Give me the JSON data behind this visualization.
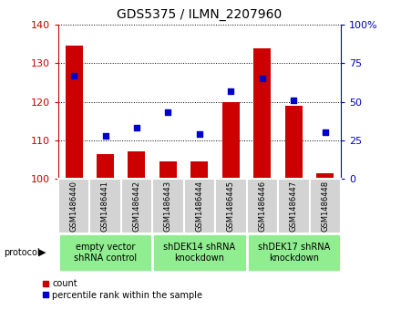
{
  "title": "GDS5375 / ILMN_2207960",
  "samples": [
    "GSM1486440",
    "GSM1486441",
    "GSM1486442",
    "GSM1486443",
    "GSM1486444",
    "GSM1486445",
    "GSM1486446",
    "GSM1486447",
    "GSM1486448"
  ],
  "counts": [
    134.5,
    106.5,
    107.0,
    104.5,
    104.5,
    120.0,
    134.0,
    119.0,
    101.5
  ],
  "percentiles": [
    67,
    28,
    33,
    43,
    29,
    57,
    65,
    51,
    30
  ],
  "ylim_left": [
    100,
    140
  ],
  "ylim_right": [
    0,
    100
  ],
  "yticks_left": [
    100,
    110,
    120,
    130,
    140
  ],
  "yticks_right": [
    0,
    25,
    50,
    75,
    100
  ],
  "bar_color": "#cc0000",
  "dot_color": "#0000cc",
  "bg_color": "#ffffff",
  "left_tick_color": "#cc0000",
  "right_tick_color": "#0000cc",
  "sample_box_color": "#d3d3d3",
  "sample_box_edge": "#ffffff",
  "proto_data": [
    {
      "start": 0,
      "end": 3,
      "label": "empty vector\nshRNA control"
    },
    {
      "start": 3,
      "end": 6,
      "label": "shDEK14 shRNA\nknockdown"
    },
    {
      "start": 6,
      "end": 9,
      "label": "shDEK17 shRNA\nknockdown"
    }
  ],
  "proto_color": "#90ee90",
  "proto_edge": "#ffffff",
  "protocol_label": "protocol",
  "legend_count_label": "count",
  "legend_percentile_label": "percentile rank within the sample",
  "title_fontsize": 10,
  "tick_fontsize": 8,
  "sample_fontsize": 6,
  "proto_fontsize": 7,
  "legend_fontsize": 7
}
